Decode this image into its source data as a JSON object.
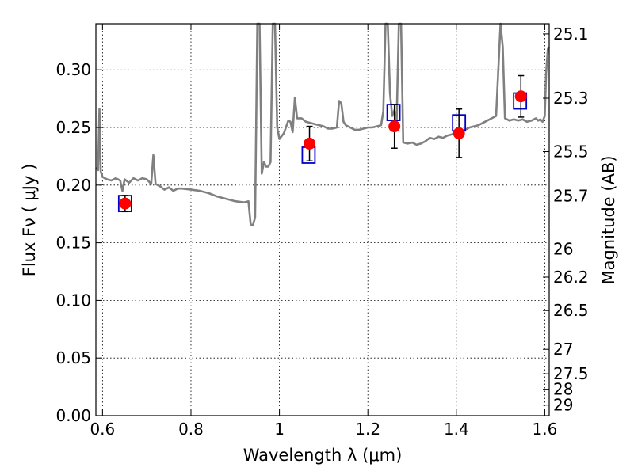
{
  "chart_data": {
    "type": "scatter",
    "xlabel": "Wavelength  λ (μm)",
    "ylabel_left": "Flux  Fν  ( μJy )",
    "ylabel_right": "Magnitude (AB)",
    "xlim": [
      0.585,
      1.61
    ],
    "ylim": [
      0.0,
      0.34
    ],
    "grid": true,
    "x_ticks": [
      0.6,
      0.8,
      1.0,
      1.2,
      1.4,
      1.6
    ],
    "x_tick_labels": [
      "0.6",
      "0.8",
      "1",
      "1.2",
      "1.4",
      "1.6"
    ],
    "y_ticks": [
      0.0,
      0.05,
      0.1,
      0.15,
      0.2,
      0.25,
      0.3
    ],
    "y_tick_labels": [
      "0.00",
      "0.05",
      "0.10",
      "0.15",
      "0.20",
      "0.25",
      "0.30"
    ],
    "mag_ticks": [
      "25.1",
      "25.3",
      "25.5",
      "25.7",
      "26",
      "26.2",
      "26.5",
      "27",
      "27.5",
      "28",
      "29"
    ],
    "model_spectrum": {
      "color": "#808080",
      "points": [
        [
          0.585,
          0.215
        ],
        [
          0.59,
          0.213
        ],
        [
          0.593,
          0.266
        ],
        [
          0.596,
          0.212
        ],
        [
          0.6,
          0.207
        ],
        [
          0.61,
          0.205
        ],
        [
          0.62,
          0.204
        ],
        [
          0.63,
          0.206
        ],
        [
          0.64,
          0.204
        ],
        [
          0.645,
          0.195
        ],
        [
          0.65,
          0.205
        ],
        [
          0.66,
          0.202
        ],
        [
          0.67,
          0.206
        ],
        [
          0.68,
          0.204
        ],
        [
          0.69,
          0.206
        ],
        [
          0.7,
          0.205
        ],
        [
          0.71,
          0.201
        ],
        [
          0.715,
          0.226
        ],
        [
          0.72,
          0.201
        ],
        [
          0.73,
          0.199
        ],
        [
          0.74,
          0.196
        ],
        [
          0.75,
          0.198
        ],
        [
          0.76,
          0.195
        ],
        [
          0.77,
          0.197
        ],
        [
          0.78,
          0.197
        ],
        [
          0.8,
          0.196
        ],
        [
          0.82,
          0.195
        ],
        [
          0.84,
          0.193
        ],
        [
          0.86,
          0.19
        ],
        [
          0.88,
          0.188
        ],
        [
          0.9,
          0.186
        ],
        [
          0.92,
          0.185
        ],
        [
          0.93,
          0.186
        ],
        [
          0.935,
          0.166
        ],
        [
          0.94,
          0.165
        ],
        [
          0.945,
          0.172
        ],
        [
          0.95,
          0.34
        ],
        [
          0.955,
          0.34
        ],
        [
          0.96,
          0.21
        ],
        [
          0.965,
          0.22
        ],
        [
          0.97,
          0.216
        ],
        [
          0.975,
          0.216
        ],
        [
          0.98,
          0.22
        ],
        [
          0.985,
          0.34
        ],
        [
          0.99,
          0.34
        ],
        [
          0.995,
          0.25
        ],
        [
          1.0,
          0.24
        ],
        [
          1.01,
          0.245
        ],
        [
          1.02,
          0.256
        ],
        [
          1.025,
          0.255
        ],
        [
          1.03,
          0.246
        ],
        [
          1.035,
          0.276
        ],
        [
          1.04,
          0.258
        ],
        [
          1.05,
          0.258
        ],
        [
          1.06,
          0.255
        ],
        [
          1.07,
          0.254
        ],
        [
          1.08,
          0.253
        ],
        [
          1.09,
          0.252
        ],
        [
          1.1,
          0.251
        ],
        [
          1.11,
          0.249
        ],
        [
          1.12,
          0.249
        ],
        [
          1.13,
          0.25
        ],
        [
          1.135,
          0.273
        ],
        [
          1.14,
          0.271
        ],
        [
          1.145,
          0.255
        ],
        [
          1.15,
          0.252
        ],
        [
          1.16,
          0.25
        ],
        [
          1.17,
          0.248
        ],
        [
          1.18,
          0.248
        ],
        [
          1.19,
          0.249
        ],
        [
          1.2,
          0.25
        ],
        [
          1.21,
          0.25
        ],
        [
          1.22,
          0.251
        ],
        [
          1.23,
          0.252
        ],
        [
          1.235,
          0.264
        ],
        [
          1.24,
          0.34
        ],
        [
          1.245,
          0.34
        ],
        [
          1.25,
          0.28
        ],
        [
          1.255,
          0.26
        ],
        [
          1.26,
          0.265
        ],
        [
          1.265,
          0.255
        ],
        [
          1.27,
          0.34
        ],
        [
          1.275,
          0.34
        ],
        [
          1.28,
          0.237
        ],
        [
          1.29,
          0.236
        ],
        [
          1.3,
          0.237
        ],
        [
          1.31,
          0.235
        ],
        [
          1.32,
          0.236
        ],
        [
          1.33,
          0.238
        ],
        [
          1.34,
          0.241
        ],
        [
          1.35,
          0.24
        ],
        [
          1.36,
          0.242
        ],
        [
          1.37,
          0.241
        ],
        [
          1.38,
          0.243
        ],
        [
          1.39,
          0.244
        ],
        [
          1.4,
          0.246
        ],
        [
          1.41,
          0.246
        ],
        [
          1.42,
          0.248
        ],
        [
          1.43,
          0.25
        ],
        [
          1.44,
          0.251
        ],
        [
          1.45,
          0.252
        ],
        [
          1.46,
          0.254
        ],
        [
          1.47,
          0.256
        ],
        [
          1.48,
          0.258
        ],
        [
          1.49,
          0.26
        ],
        [
          1.495,
          0.3
        ],
        [
          1.5,
          0.34
        ],
        [
          1.505,
          0.32
        ],
        [
          1.51,
          0.258
        ],
        [
          1.52,
          0.256
        ],
        [
          1.53,
          0.257
        ],
        [
          1.54,
          0.256
        ],
        [
          1.55,
          0.257
        ],
        [
          1.56,
          0.255
        ],
        [
          1.57,
          0.256
        ],
        [
          1.58,
          0.258
        ],
        [
          1.585,
          0.256
        ],
        [
          1.59,
          0.257
        ],
        [
          1.595,
          0.255
        ],
        [
          1.6,
          0.26
        ],
        [
          1.603,
          0.297
        ],
        [
          1.607,
          0.318
        ],
        [
          1.61,
          0.32
        ]
      ]
    },
    "model_photometry": {
      "color": "#0000cc",
      "points": [
        [
          0.651,
          0.184
        ],
        [
          1.066,
          0.226
        ],
        [
          1.258,
          0.263
        ],
        [
          1.406,
          0.254
        ],
        [
          1.544,
          0.273
        ]
      ]
    },
    "observed_photometry": {
      "color": "#ff0000",
      "errorbar_color": "#000000",
      "points": [
        {
          "x": 0.651,
          "y": 0.184,
          "err": 0.007
        },
        {
          "x": 1.068,
          "y": 0.236,
          "err": 0.015
        },
        {
          "x": 1.26,
          "y": 0.251,
          "err": 0.019
        },
        {
          "x": 1.406,
          "y": 0.245,
          "err": 0.021
        },
        {
          "x": 1.546,
          "y": 0.277,
          "err": 0.018
        }
      ]
    }
  }
}
